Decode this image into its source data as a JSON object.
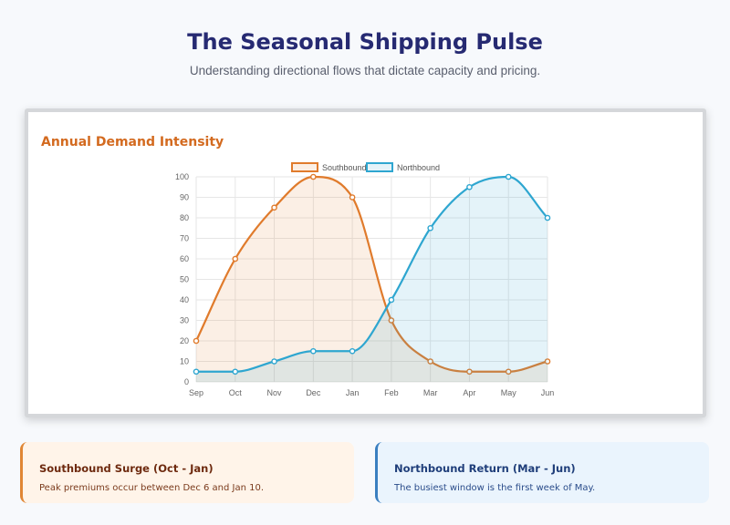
{
  "header": {
    "title": "The Seasonal Shipping Pulse",
    "subtitle": "Understanding directional flows that dictate capacity and pricing."
  },
  "chart_card": {
    "title": "Annual Demand Intensity"
  },
  "chart_data": {
    "type": "line",
    "title": "",
    "xlabel": "",
    "ylabel": "",
    "categories": [
      "Sep",
      "Oct",
      "Nov",
      "Dec",
      "Jan",
      "Feb",
      "Mar",
      "Apr",
      "May",
      "Jun"
    ],
    "ylim": [
      0,
      100
    ],
    "yticks": [
      0,
      10,
      20,
      30,
      40,
      50,
      60,
      70,
      80,
      90,
      100
    ],
    "grid": true,
    "legend_position": "top",
    "filled": true,
    "series": [
      {
        "name": "Southbound",
        "color": "#e07b2c",
        "fill": "rgba(224,123,44,0.12)",
        "values": [
          20,
          60,
          85,
          100,
          90,
          30,
          10,
          5,
          5,
          10
        ]
      },
      {
        "name": "Northbound",
        "color": "#2ea6d0",
        "fill": "rgba(46,166,208,0.13)",
        "values": [
          5,
          5,
          10,
          15,
          15,
          40,
          75,
          95,
          100,
          80
        ]
      }
    ]
  },
  "info_cards": [
    {
      "title": "Southbound Surge (Oct - Jan)",
      "text": "Peak premiums occur between Dec 6 and Jan 10."
    },
    {
      "title": "Northbound Return (Mar - Jun)",
      "text": "The busiest window is the first week of May."
    }
  ]
}
